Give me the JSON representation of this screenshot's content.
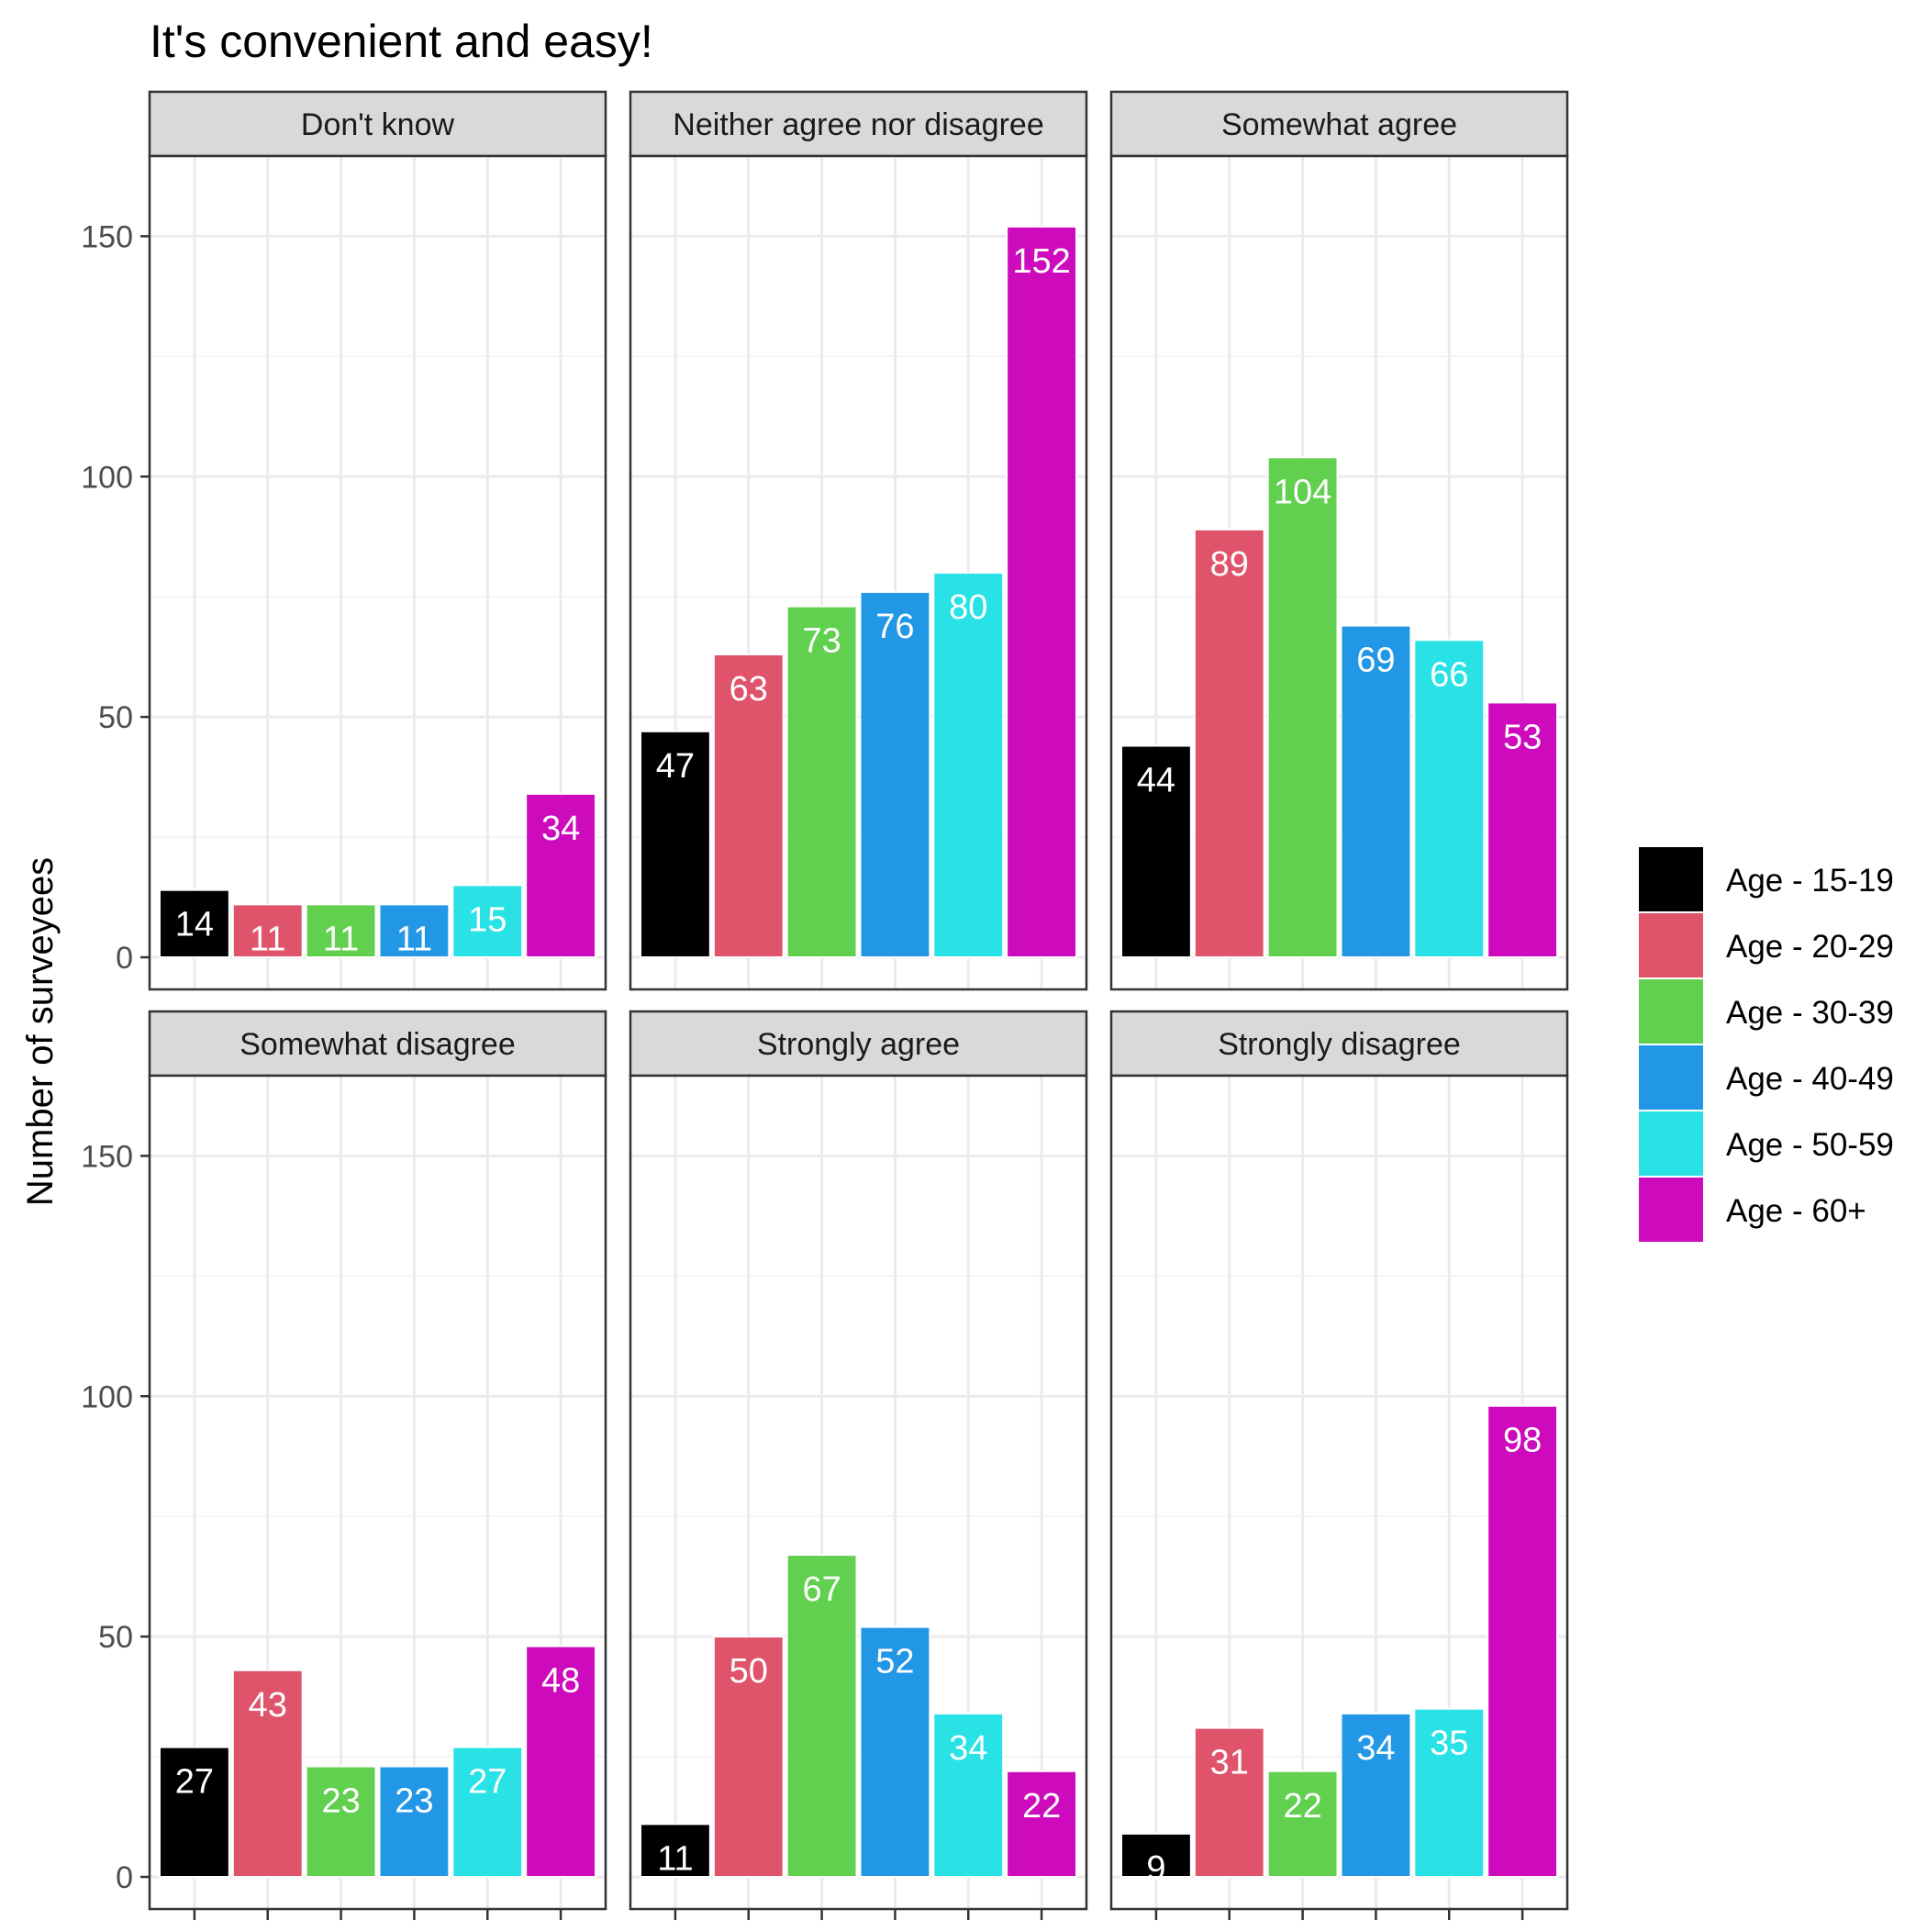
{
  "chart_data": {
    "type": "bar",
    "title": "It's convenient and easy!",
    "xlabel": "",
    "ylabel": "Number of surveyees",
    "ylim": [
      0,
      160
    ],
    "yticks": [
      0,
      50,
      100,
      150
    ],
    "grid": true,
    "legend_position": "right",
    "categories": [
      "Age - 15-19",
      "Age - 20-29",
      "Age - 30-39",
      "Age - 40-49",
      "Age - 50-59",
      "Age - 60+"
    ],
    "colors": [
      "#000000",
      "#DF536B",
      "#61D04F",
      "#2297E6",
      "#28E2E5",
      "#CD0BBC"
    ],
    "label_colors": [
      "#FFFFFF",
      "#FFFFFF",
      "#FFFFFF",
      "#FFFFFF",
      "#FFFFFF",
      "#FFFFFF"
    ],
    "panels": [
      {
        "name": "Don't know",
        "values": [
          14,
          11,
          11,
          11,
          15,
          34
        ]
      },
      {
        "name": "Neither agree nor disagree",
        "values": [
          47,
          63,
          73,
          76,
          80,
          152
        ]
      },
      {
        "name": "Somewhat agree",
        "values": [
          44,
          89,
          104,
          69,
          66,
          53
        ]
      },
      {
        "name": "Somewhat disagree",
        "values": [
          27,
          43,
          23,
          23,
          27,
          48
        ]
      },
      {
        "name": "Strongly agree",
        "values": [
          11,
          50,
          67,
          52,
          34,
          22
        ]
      },
      {
        "name": "Strongly disagree",
        "values": [
          9,
          31,
          22,
          34,
          35,
          98
        ]
      }
    ]
  }
}
